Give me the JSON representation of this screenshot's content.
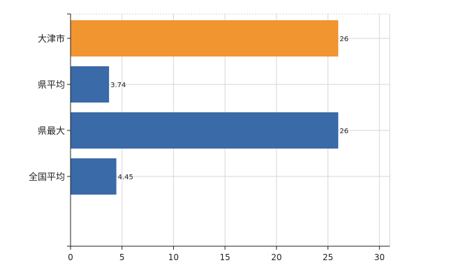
{
  "chart_data": {
    "type": "bar",
    "orientation": "horizontal",
    "categories": [
      "大津市",
      "県平均",
      "県最大",
      "全国平均"
    ],
    "values": [
      26,
      3.74,
      26,
      4.45
    ],
    "value_labels": [
      "26",
      "3.74",
      "26",
      "4.45"
    ],
    "bar_colors": [
      "#f0952f",
      "#3a6aa8",
      "#3a6aa8",
      "#3a6aa8"
    ],
    "xlim": [
      0,
      31
    ],
    "xticks": [
      0,
      5,
      10,
      15,
      20,
      25,
      30
    ],
    "grid": true,
    "legend": "none",
    "title": "",
    "xlabel": "",
    "ylabel": ""
  }
}
